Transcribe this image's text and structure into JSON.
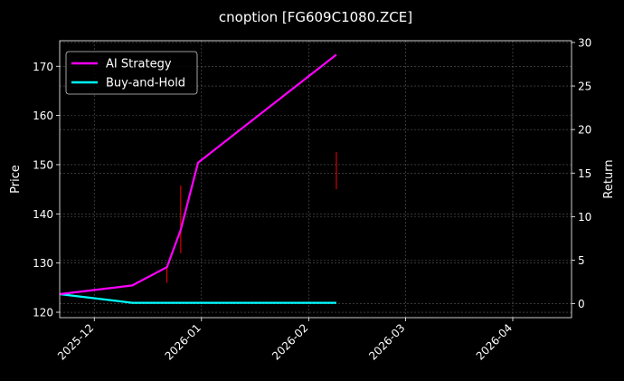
{
  "chart_data": {
    "type": "line",
    "title": "cnoption [FG609C1080.ZCE]",
    "xlabel": "",
    "ylabel": "Price",
    "y2label": "Return",
    "x_domain": [
      "2025-11-21",
      "2026-04-18"
    ],
    "x_ticks": [
      "2025-12",
      "2026-01",
      "2026-02",
      "2026-03",
      "2026-04"
    ],
    "ylim": [
      118.9,
      175.2
    ],
    "yticks": [
      120,
      130,
      140,
      150,
      160,
      170
    ],
    "y2lim": [
      -1.6,
      30.2
    ],
    "y2ticks": [
      0,
      5,
      10,
      15,
      20,
      25,
      30
    ],
    "grid": true,
    "legend": "top-left",
    "price_bars": [
      {
        "x": "2025-12-22",
        "low": 126.0,
        "high": 129.0
      },
      {
        "x": "2025-12-26",
        "low": 132.0,
        "high": 145.8
      },
      {
        "x": "2026-02-09",
        "low": 145.0,
        "high": 152.6
      }
    ],
    "series": [
      {
        "name": "AI Strategy",
        "color": "#ff00ff",
        "axis": "right",
        "x": [
          "2025-11-21",
          "2025-12-12",
          "2025-12-22",
          "2025-12-26",
          "2025-12-31",
          "2026-02-09"
        ],
        "values": [
          1.1,
          2.1,
          4.2,
          8.5,
          16.2,
          28.6
        ]
      },
      {
        "name": "Buy-and-Hold",
        "color": "#00ffff",
        "axis": "right",
        "x": [
          "2025-11-21",
          "2025-12-12",
          "2026-02-09"
        ],
        "values": [
          1.1,
          0.1,
          0.1
        ]
      }
    ]
  }
}
